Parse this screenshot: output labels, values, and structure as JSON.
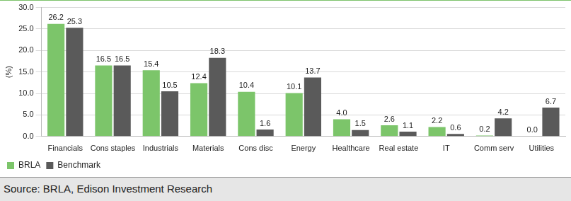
{
  "chart_data": {
    "type": "bar",
    "categories": [
      "Financials",
      "Cons staples",
      "Industrials",
      "Materials",
      "Cons disc",
      "Energy",
      "Healthcare",
      "Real estate",
      "IT",
      "Comm serv",
      "Utilities"
    ],
    "series": [
      {
        "name": "BRLA",
        "color": "#7cc56a",
        "values": [
          26.2,
          16.5,
          15.4,
          12.4,
          10.4,
          10.1,
          4.0,
          2.6,
          2.2,
          0.2,
          0.0
        ],
        "value_labels": [
          "26.2",
          "16.5",
          "15.4",
          "12.4",
          "10.4",
          "10.1",
          "4.0",
          "2.6",
          "2.2",
          "0.2",
          "0.0"
        ]
      },
      {
        "name": "Benchmark",
        "color": "#5a5a5a",
        "values": [
          25.3,
          16.5,
          10.5,
          18.3,
          1.6,
          13.7,
          1.5,
          1.1,
          0.6,
          4.2,
          6.7
        ],
        "value_labels": [
          "25.3",
          "16.5",
          "10.5",
          "18.3",
          "1.6",
          "13.7",
          "1.5",
          "1.1",
          "0.6",
          "4.2",
          "6.7"
        ]
      }
    ],
    "y_label": "(%)",
    "ylim": [
      0,
      30
    ],
    "yticks": [
      {
        "value": 0,
        "label": "0.0"
      },
      {
        "value": 5,
        "label": "5.0"
      },
      {
        "value": 10,
        "label": "10.0"
      },
      {
        "value": 15,
        "label": "15.0"
      },
      {
        "value": 20,
        "label": "20.0"
      },
      {
        "value": 25,
        "label": "25.0"
      },
      {
        "value": 30,
        "label": "30.0"
      }
    ],
    "grid": true,
    "legend": "bottom",
    "data_labels": true,
    "source": "Source: BRLA, Edison Investment Research"
  }
}
